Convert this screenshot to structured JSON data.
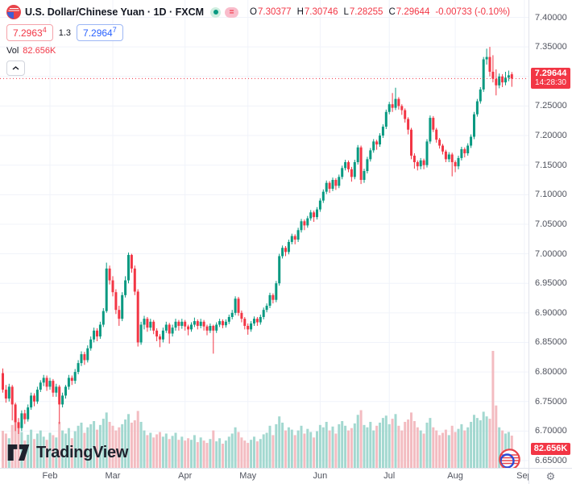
{
  "colors": {
    "up": "#089981",
    "down": "#f23645",
    "vol_up": "#a3d8d0",
    "vol_down": "#f3bcc1",
    "accent_red": "#f23645",
    "accent_blue": "#2962ff",
    "grid": "#f0f3fa",
    "axis_text": "#50535e",
    "title_text": "#131722",
    "badge_bg": "#f23645"
  },
  "icons": {
    "spread_equals": "=",
    "settings_gear": "⚙"
  },
  "header": {
    "title": "U.S. Dollar/Chinese Yuan · 1D · FXCM",
    "ohlc": {
      "o_label": "O",
      "o_value": "7.30377",
      "h_label": "H",
      "h_value": "7.30746",
      "l_label": "L",
      "l_value": "7.28255",
      "c_label": "C",
      "c_value": "7.29644",
      "change": "-0.00733 (-0.10%)"
    },
    "sell": {
      "main": "7.2963",
      "sup": "4"
    },
    "spread": "1.3",
    "buy": {
      "main": "7.2964",
      "sup": "7"
    },
    "volume": {
      "label": "Vol",
      "value": "82.656K"
    }
  },
  "watermark": {
    "text": "TradingView"
  },
  "price_scale": {
    "last_badge": {
      "price": "7.29644",
      "countdown": "14:28:30"
    },
    "volume_badge": "82.656K"
  },
  "chart_data": {
    "type": "candlestick",
    "symbol": "USD/CNY",
    "interval": "1D",
    "source": "FXCM",
    "legend_note": "volume pane overlaid at bottom, last close 7.29644",
    "price_axis": {
      "top": 7.4294,
      "bottom": 6.6377,
      "ticks": [
        7.4,
        7.35,
        7.3,
        7.25,
        7.2,
        7.15,
        7.1,
        7.05,
        7.0,
        6.95,
        6.9,
        6.85,
        6.8,
        6.75,
        6.7,
        6.65
      ]
    },
    "months": [
      {
        "label": "Feb",
        "index": 15
      },
      {
        "label": "Mar",
        "index": 35
      },
      {
        "label": "Apr",
        "index": 58
      },
      {
        "label": "May",
        "index": 78
      },
      {
        "label": "Jun",
        "index": 101
      },
      {
        "label": "Jul",
        "index": 123
      },
      {
        "label": "Aug",
        "index": 144
      },
      {
        "label": "Sep",
        "index": 166
      }
    ],
    "last_close": 7.29644,
    "candles": [
      [
        6.798,
        6.806,
        6.765,
        6.77
      ],
      [
        6.77,
        6.778,
        6.748,
        6.755
      ],
      [
        6.755,
        6.78,
        6.75,
        6.775
      ],
      [
        6.775,
        6.778,
        6.718,
        6.745
      ],
      [
        6.745,
        6.748,
        6.7,
        6.715
      ],
      [
        6.715,
        6.722,
        6.695,
        6.705
      ],
      [
        6.705,
        6.735,
        6.7,
        6.73
      ],
      [
        6.73,
        6.736,
        6.712,
        6.72
      ],
      [
        6.72,
        6.745,
        6.716,
        6.74
      ],
      [
        6.74,
        6.765,
        6.736,
        6.76
      ],
      [
        6.76,
        6.764,
        6.742,
        6.75
      ],
      [
        6.75,
        6.775,
        6.746,
        6.77
      ],
      [
        6.77,
        6.786,
        6.766,
        6.782
      ],
      [
        6.782,
        6.795,
        6.776,
        6.79
      ],
      [
        6.79,
        6.794,
        6.768,
        6.775
      ],
      [
        6.775,
        6.79,
        6.77,
        6.785
      ],
      [
        6.785,
        6.788,
        6.758,
        6.765
      ],
      [
        6.765,
        6.78,
        6.758,
        6.775
      ],
      [
        6.775,
        6.778,
        6.712,
        6.745
      ],
      [
        6.745,
        6.765,
        6.74,
        6.76
      ],
      [
        6.76,
        6.778,
        6.755,
        6.775
      ],
      [
        6.775,
        6.795,
        6.77,
        6.79
      ],
      [
        6.79,
        6.794,
        6.778,
        6.785
      ],
      [
        6.785,
        6.805,
        6.78,
        6.8
      ],
      [
        6.8,
        6.82,
        6.796,
        6.815
      ],
      [
        6.815,
        6.835,
        6.81,
        6.83
      ],
      [
        6.83,
        6.834,
        6.812,
        6.82
      ],
      [
        6.82,
        6.845,
        6.816,
        6.84
      ],
      [
        6.84,
        6.86,
        6.836,
        6.855
      ],
      [
        6.855,
        6.875,
        6.85,
        6.87
      ],
      [
        6.87,
        6.874,
        6.852,
        6.86
      ],
      [
        6.86,
        6.885,
        6.856,
        6.88
      ],
      [
        6.88,
        6.908,
        6.876,
        6.903
      ],
      [
        6.903,
        6.985,
        6.9,
        6.975
      ],
      [
        6.975,
        6.98,
        6.948,
        6.955
      ],
      [
        6.955,
        6.962,
        6.928,
        6.935
      ],
      [
        6.935,
        6.94,
        6.898,
        6.905
      ],
      [
        6.905,
        6.912,
        6.878,
        6.89
      ],
      [
        6.89,
        6.935,
        6.886,
        6.93
      ],
      [
        6.93,
        6.962,
        6.926,
        6.955
      ],
      [
        6.955,
        7.002,
        6.95,
        6.998
      ],
      [
        6.998,
        7.0,
        6.968,
        6.975
      ],
      [
        6.975,
        6.98,
        6.93,
        6.936
      ],
      [
        6.936,
        6.94,
        6.843,
        6.85
      ],
      [
        6.85,
        6.885,
        6.846,
        6.88
      ],
      [
        6.88,
        6.895,
        6.872,
        6.89
      ],
      [
        6.89,
        6.893,
        6.868,
        6.875
      ],
      [
        6.875,
        6.89,
        6.87,
        6.885
      ],
      [
        6.885,
        6.888,
        6.864,
        6.87
      ],
      [
        6.87,
        6.874,
        6.852,
        6.86
      ],
      [
        6.86,
        6.864,
        6.842,
        6.855
      ],
      [
        6.855,
        6.875,
        6.85,
        6.87
      ],
      [
        6.87,
        6.885,
        6.866,
        6.88
      ],
      [
        6.88,
        6.883,
        6.848,
        6.865
      ],
      [
        6.865,
        6.88,
        6.86,
        6.875
      ],
      [
        6.875,
        6.89,
        6.87,
        6.885
      ],
      [
        6.885,
        6.888,
        6.87,
        6.878
      ],
      [
        6.878,
        6.89,
        6.873,
        6.885
      ],
      [
        6.885,
        6.888,
        6.87,
        6.877
      ],
      [
        6.877,
        6.88,
        6.862,
        6.872
      ],
      [
        6.872,
        6.884,
        6.868,
        6.88
      ],
      [
        6.88,
        6.892,
        6.876,
        6.886
      ],
      [
        6.886,
        6.889,
        6.872,
        6.878
      ],
      [
        6.878,
        6.89,
        6.874,
        6.885
      ],
      [
        6.885,
        6.888,
        6.87,
        6.877
      ],
      [
        6.877,
        6.88,
        6.862,
        6.87
      ],
      [
        6.87,
        6.882,
        6.866,
        6.878
      ],
      [
        6.878,
        6.88,
        6.831,
        6.87
      ],
      [
        6.87,
        6.884,
        6.866,
        6.88
      ],
      [
        6.88,
        6.89,
        6.876,
        6.886
      ],
      [
        6.886,
        6.889,
        6.874,
        6.879
      ],
      [
        6.879,
        6.889,
        6.875,
        6.885
      ],
      [
        6.885,
        6.897,
        6.881,
        6.893
      ],
      [
        6.893,
        6.905,
        6.889,
        6.9
      ],
      [
        6.9,
        6.928,
        6.896,
        6.924
      ],
      [
        6.924,
        6.927,
        6.895,
        6.9
      ],
      [
        6.9,
        6.904,
        6.884,
        6.89
      ],
      [
        6.89,
        6.893,
        6.872,
        6.878
      ],
      [
        6.878,
        6.882,
        6.863,
        6.872
      ],
      [
        6.872,
        6.886,
        6.868,
        6.882
      ],
      [
        6.882,
        6.894,
        6.878,
        6.89
      ],
      [
        6.89,
        6.893,
        6.878,
        6.884
      ],
      [
        6.884,
        6.897,
        6.88,
        6.893
      ],
      [
        6.893,
        6.909,
        6.889,
        6.905
      ],
      [
        6.905,
        6.916,
        6.901,
        6.912
      ],
      [
        6.912,
        6.934,
        6.908,
        6.93
      ],
      [
        6.93,
        6.933,
        6.916,
        6.922
      ],
      [
        6.922,
        6.954,
        6.918,
        6.95
      ],
      [
        6.95,
        7.0,
        6.946,
        6.996
      ],
      [
        6.996,
        7.014,
        6.992,
        7.01
      ],
      [
        7.01,
        7.013,
        6.996,
        7.003
      ],
      [
        7.003,
        7.024,
        6.999,
        7.02
      ],
      [
        7.02,
        7.034,
        7.016,
        7.03
      ],
      [
        7.03,
        7.033,
        7.016,
        7.024
      ],
      [
        7.024,
        7.044,
        7.02,
        7.04
      ],
      [
        7.04,
        7.059,
        7.036,
        7.055
      ],
      [
        7.055,
        7.058,
        7.04,
        7.048
      ],
      [
        7.048,
        7.064,
        7.044,
        7.06
      ],
      [
        7.06,
        7.074,
        7.056,
        7.07
      ],
      [
        7.07,
        7.073,
        7.054,
        7.062
      ],
      [
        7.062,
        7.079,
        7.058,
        7.075
      ],
      [
        7.075,
        7.094,
        7.071,
        7.09
      ],
      [
        7.09,
        7.109,
        7.086,
        7.105
      ],
      [
        7.105,
        7.124,
        7.101,
        7.12
      ],
      [
        7.12,
        7.123,
        7.103,
        7.11
      ],
      [
        7.11,
        7.129,
        7.106,
        7.125
      ],
      [
        7.125,
        7.128,
        7.108,
        7.115
      ],
      [
        7.115,
        7.134,
        7.111,
        7.13
      ],
      [
        7.13,
        7.149,
        7.126,
        7.145
      ],
      [
        7.145,
        7.159,
        7.141,
        7.155
      ],
      [
        7.155,
        7.158,
        7.138,
        7.143
      ],
      [
        7.143,
        7.147,
        7.122,
        7.13
      ],
      [
        7.13,
        7.159,
        7.126,
        7.155
      ],
      [
        7.155,
        7.184,
        7.151,
        7.18
      ],
      [
        7.18,
        7.183,
        7.118,
        7.125
      ],
      [
        7.125,
        7.144,
        7.12,
        7.14
      ],
      [
        7.14,
        7.164,
        7.136,
        7.16
      ],
      [
        7.16,
        7.179,
        7.156,
        7.175
      ],
      [
        7.175,
        7.194,
        7.171,
        7.19
      ],
      [
        7.19,
        7.193,
        7.176,
        7.185
      ],
      [
        7.185,
        7.204,
        7.181,
        7.2
      ],
      [
        7.2,
        7.219,
        7.196,
        7.215
      ],
      [
        7.215,
        7.244,
        7.211,
        7.24
      ],
      [
        7.24,
        7.257,
        7.236,
        7.253
      ],
      [
        7.253,
        7.272,
        7.24,
        7.247
      ],
      [
        7.247,
        7.281,
        7.243,
        7.262
      ],
      [
        7.262,
        7.265,
        7.244,
        7.25
      ],
      [
        7.25,
        7.253,
        7.235,
        7.243
      ],
      [
        7.243,
        7.246,
        7.222,
        7.228
      ],
      [
        7.228,
        7.231,
        7.202,
        7.21
      ],
      [
        7.21,
        7.213,
        7.16,
        7.166
      ],
      [
        7.166,
        7.17,
        7.144,
        7.155
      ],
      [
        7.155,
        7.158,
        7.141,
        7.148
      ],
      [
        7.148,
        7.162,
        7.143,
        7.158
      ],
      [
        7.158,
        7.161,
        7.143,
        7.15
      ],
      [
        7.15,
        7.194,
        7.146,
        7.19
      ],
      [
        7.19,
        7.234,
        7.186,
        7.23
      ],
      [
        7.23,
        7.233,
        7.206,
        7.21
      ],
      [
        7.21,
        7.213,
        7.188,
        7.193
      ],
      [
        7.193,
        7.196,
        7.178,
        7.183
      ],
      [
        7.183,
        7.186,
        7.168,
        7.173
      ],
      [
        7.173,
        7.176,
        7.155,
        7.16
      ],
      [
        7.16,
        7.172,
        7.155,
        7.168
      ],
      [
        7.168,
        7.171,
        7.131,
        7.155
      ],
      [
        7.155,
        7.158,
        7.138,
        7.148
      ],
      [
        7.148,
        7.166,
        7.143,
        7.162
      ],
      [
        7.162,
        7.181,
        7.158,
        7.177
      ],
      [
        7.177,
        7.18,
        7.163,
        7.17
      ],
      [
        7.17,
        7.187,
        7.166,
        7.183
      ],
      [
        7.183,
        7.202,
        7.179,
        7.198
      ],
      [
        7.198,
        7.24,
        7.194,
        7.236
      ],
      [
        7.236,
        7.262,
        7.232,
        7.258
      ],
      [
        7.258,
        7.282,
        7.254,
        7.278
      ],
      [
        7.278,
        7.333,
        7.274,
        7.329
      ],
      [
        7.329,
        7.347,
        7.32,
        7.333
      ],
      [
        7.333,
        7.35,
        7.3,
        7.308
      ],
      [
        7.308,
        7.336,
        7.29,
        7.296
      ],
      [
        7.296,
        7.312,
        7.268,
        7.285
      ],
      [
        7.285,
        7.305,
        7.28,
        7.3
      ],
      [
        7.3,
        7.304,
        7.282,
        7.29
      ],
      [
        7.29,
        7.308,
        7.285,
        7.298
      ],
      [
        7.298,
        7.31,
        7.292,
        7.302
      ],
      [
        7.30377,
        7.30746,
        7.28255,
        7.29644
      ]
    ],
    "volumes": [
      95,
      88,
      76,
      110,
      125,
      105,
      92,
      70,
      85,
      98,
      74,
      88,
      96,
      80,
      72,
      90,
      84,
      78,
      118,
      96,
      88,
      102,
      76,
      94,
      108,
      116,
      90,
      104,
      112,
      120,
      98,
      110,
      126,
      142,
      118,
      108,
      96,
      104,
      112,
      124,
      138,
      116,
      122,
      146,
      118,
      96,
      84,
      90,
      78,
      86,
      92,
      80,
      88,
      74,
      82,
      90,
      72,
      80,
      70,
      76,
      72,
      84,
      66,
      78,
      70,
      64,
      74,
      96,
      68,
      76,
      62,
      70,
      80,
      88,
      104,
      92,
      78,
      70,
      64,
      72,
      80,
      68,
      74,
      86,
      90,
      108,
      84,
      112,
      132,
      116,
      96,
      104,
      98,
      84,
      96,
      108,
      88,
      100,
      92,
      78,
      94,
      110,
      104,
      118,
      96,
      106,
      88,
      112,
      120,
      108,
      96,
      102,
      114,
      136,
      148,
      110,
      104,
      118,
      96,
      108,
      116,
      128,
      134,
      112,
      126,
      138,
      108,
      96,
      118,
      124,
      142,
      120,
      104,
      96,
      88,
      116,
      128,
      104,
      96,
      84,
      90,
      98,
      84,
      108,
      92,
      100,
      112,
      96,
      104,
      118,
      136,
      128,
      122,
      144,
      132,
      126,
      300,
      160,
      104,
      96,
      88,
      92,
      82.656
    ]
  }
}
